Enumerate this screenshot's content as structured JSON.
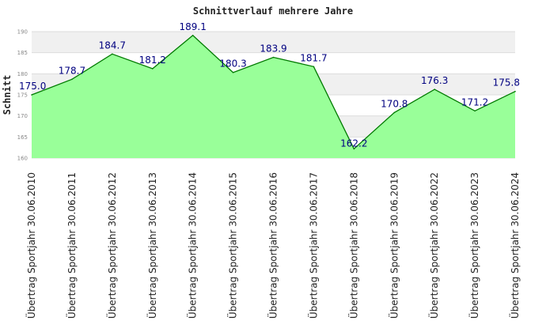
{
  "chart_data": {
    "type": "area",
    "title": "Schnittverlauf mehrere Jahre",
    "xlabel": "",
    "ylabel": "Schnitt",
    "categories": [
      "Übertrag Sportjahr 30.06.2010",
      "Übertrag Sportjahr 30.06.2011",
      "Übertrag Sportjahr 30.06.2012",
      "Übertrag Sportjahr 30.06.2013",
      "Übertrag Sportjahr 30.06.2014",
      "Übertrag Sportjahr 30.06.2015",
      "Übertrag Sportjahr 30.06.2016",
      "Übertrag Sportjahr 30.06.2017",
      "Übertrag Sportjahr 30.06.2018",
      "Übertrag Sportjahr 30.06.2019",
      "Übertrag Sportjahr 30.06.2022",
      "Übertrag Sportjahr 30.06.2023",
      "Übertrag Sportjahr 30.06.2024"
    ],
    "values": [
      175.0,
      178.7,
      184.7,
      181.2,
      189.1,
      180.3,
      183.9,
      181.7,
      162.2,
      170.8,
      176.3,
      171.2,
      175.8
    ],
    "data_labels": [
      "175.0",
      "178.7",
      "184.7",
      "181.2",
      "189.1",
      "180.3",
      "183.9",
      "181.7",
      "162.2",
      "170.8",
      "176.3",
      "171.2",
      "175.8"
    ],
    "ylim": [
      160,
      190
    ],
    "yticks": [
      160,
      165,
      170,
      175,
      180,
      185,
      190
    ],
    "ytick_labels": [
      "160",
      "165",
      "170",
      "175",
      "180",
      "185",
      "190"
    ],
    "grid": true,
    "legend": "none",
    "colors": {
      "fill": "#99ff99",
      "line": "#007a00",
      "label": "#000080",
      "band": "#f0f0f0",
      "grid": "#dddddd"
    }
  }
}
